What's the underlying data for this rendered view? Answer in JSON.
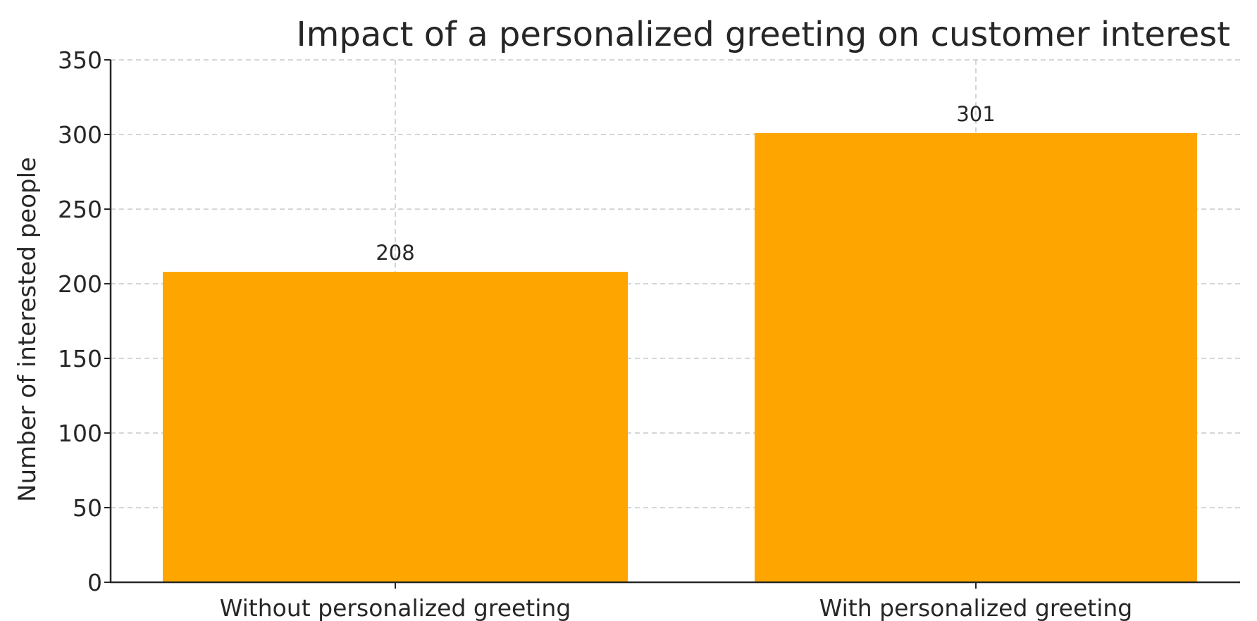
{
  "chart_data": {
    "type": "bar",
    "title": "Impact of a personalized greeting on customer interest",
    "xlabel": "",
    "ylabel": "Number of interested people",
    "categories": [
      "Without personalized greeting",
      "With personalized greeting"
    ],
    "values": [
      208,
      301
    ],
    "data_labels": [
      "208",
      "301"
    ],
    "ylim": [
      0,
      350
    ],
    "yticks": [
      0,
      50,
      100,
      150,
      200,
      250,
      300,
      350
    ],
    "ytick_labels": [
      "0",
      "50",
      "100",
      "150",
      "200",
      "250",
      "300",
      "350"
    ],
    "grid": true,
    "bar_color": "#FFA500",
    "text_color": "#262626",
    "grid_color": "#C8C8C8"
  }
}
